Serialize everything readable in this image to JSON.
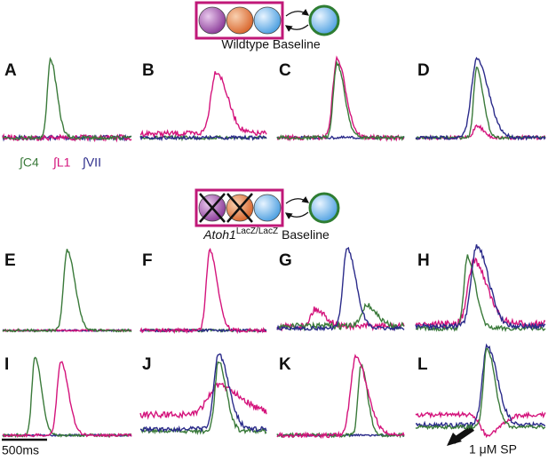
{
  "figure": {
    "panels": [
      "A",
      "B",
      "C",
      "D",
      "E",
      "F",
      "G",
      "H",
      "I",
      "J",
      "K",
      "L"
    ],
    "legend": [
      "∫C4",
      "∫L1",
      "∫VII"
    ],
    "wildtype_label": "Wildtype Baseline",
    "mutant_label": {
      "gene": "Atoh1",
      "superscript": "LacZ/LacZ",
      "suffix": "Baseline"
    },
    "scale_bar": "500ms",
    "annotation": "1 μM SP"
  }
}
